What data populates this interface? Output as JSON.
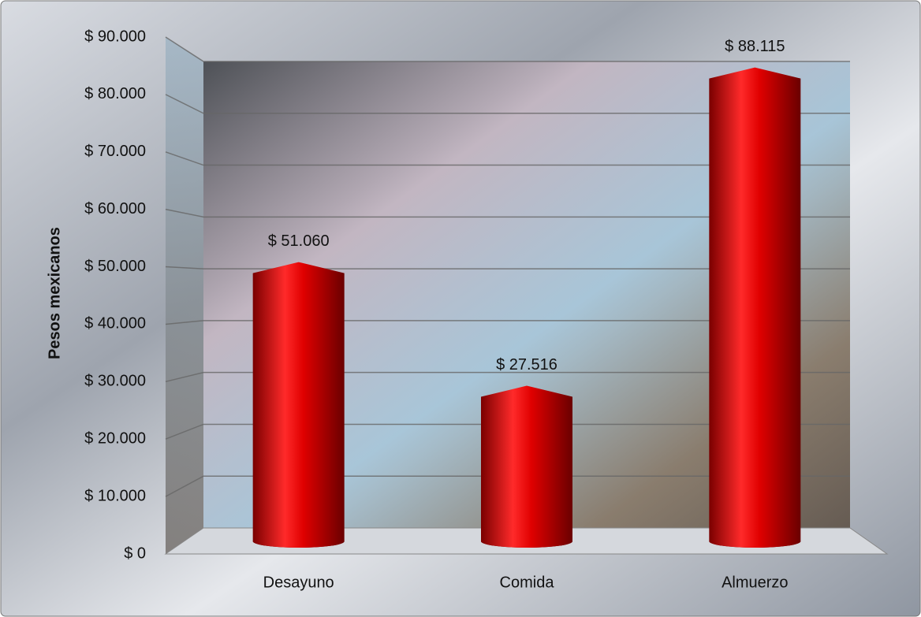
{
  "chart_data": {
    "type": "bar",
    "y_label": "Pesos mexicanos",
    "categories": [
      "Desayuno",
      "Comida",
      "Almuerzo"
    ],
    "values": [
      51060,
      27516,
      88115
    ],
    "value_labels": [
      "$ 51.060",
      "$ 27.516",
      "$ 88.115"
    ],
    "color": "#e00000",
    "ylim": [
      0,
      90000
    ],
    "yticks": [
      {
        "value": 0,
        "label": "$ 0"
      },
      {
        "value": 10000,
        "label": "$ 10.000"
      },
      {
        "value": 20000,
        "label": "$ 20.000"
      },
      {
        "value": 30000,
        "label": "$ 30.000"
      },
      {
        "value": 40000,
        "label": "$ 40.000"
      },
      {
        "value": 50000,
        "label": "$ 50.000"
      },
      {
        "value": 60000,
        "label": "$ 60.000"
      },
      {
        "value": 70000,
        "label": "$ 70.000"
      },
      {
        "value": 80000,
        "label": "$ 80.000"
      },
      {
        "value": 90000,
        "label": "$ 90.000"
      }
    ],
    "grid": true
  }
}
